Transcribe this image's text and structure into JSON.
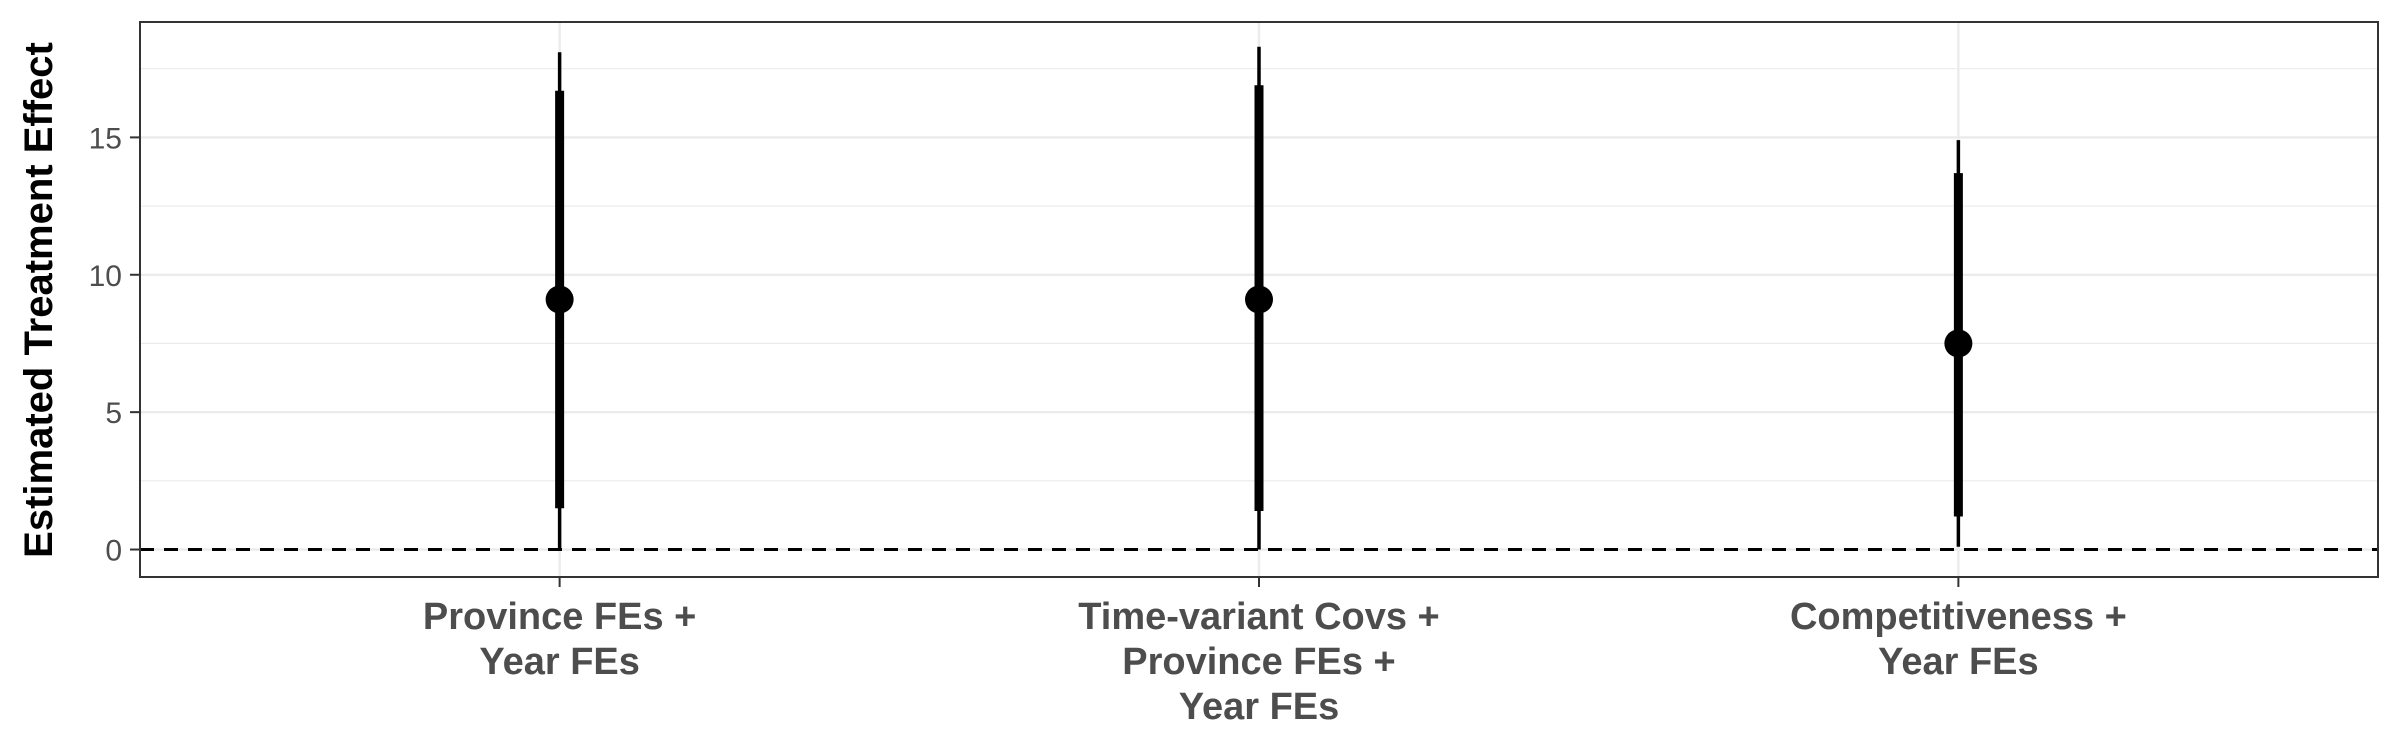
{
  "chart_data": {
    "type": "scatter",
    "subtype": "coefficient-plot-with-confidence-intervals",
    "title": "",
    "xlabel": "",
    "ylabel": "Estimated Treatment Effect",
    "ylim": [
      -1,
      19.2
    ],
    "yticks": [
      0,
      5,
      10,
      15
    ],
    "ytick_labels": [
      "0",
      "5",
      "10",
      "15"
    ],
    "categories": [
      [
        "Province FEs +",
        "Year FEs"
      ],
      [
        "Time-variant Covs +",
        "Province FEs +",
        "Year FEs"
      ],
      [
        "Competitiveness +",
        "Year FEs"
      ]
    ],
    "estimates": [
      9.1,
      9.1,
      7.5
    ],
    "ci_95": [
      [
        0.0,
        18.1
      ],
      [
        0.0,
        18.3
      ],
      [
        0.1,
        14.9
      ]
    ],
    "ci_90": [
      [
        1.5,
        16.7
      ],
      [
        1.4,
        16.9
      ],
      [
        1.2,
        13.7
      ]
    ],
    "reference_line": {
      "y": 0,
      "style": "dashed"
    },
    "grid": true,
    "legend": "none",
    "colors": {
      "point": "#000000",
      "ci_95": "#000000",
      "ci_90": "#000000",
      "grid": "#ebebeb",
      "panel_border": "#333333",
      "tick_text": "#4d4d4d"
    }
  }
}
